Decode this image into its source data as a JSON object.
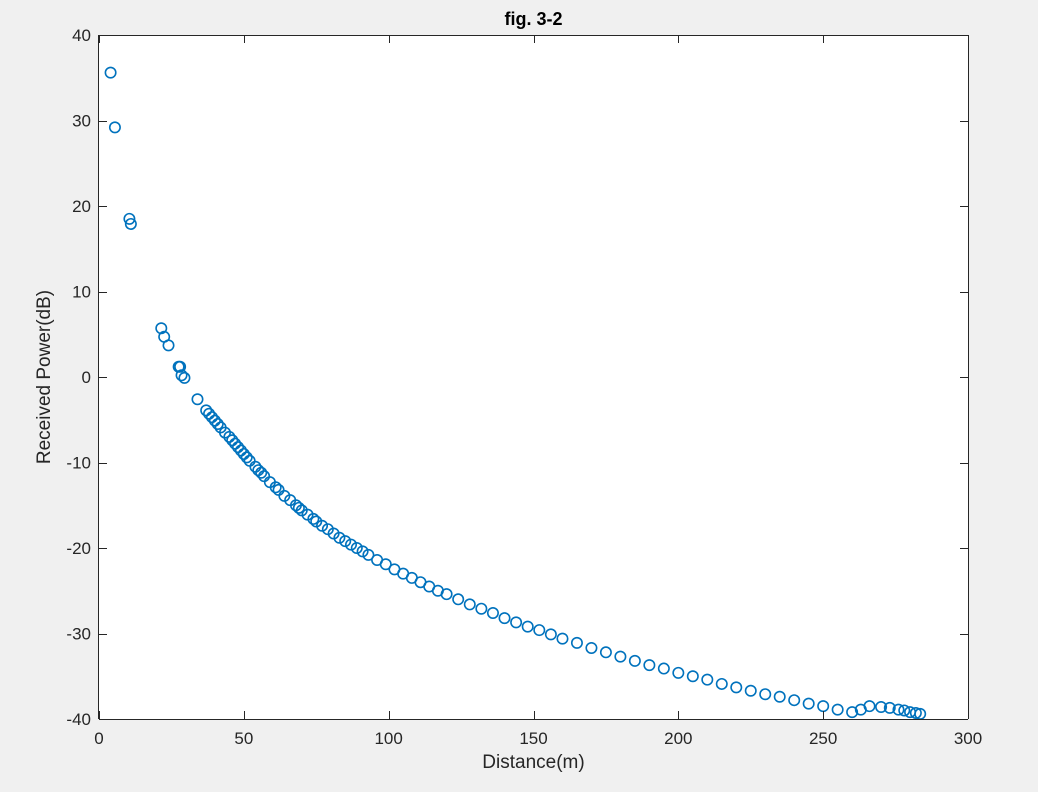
{
  "chart_data": {
    "type": "scatter",
    "title": "fig. 3-2",
    "xlabel": "Distance(m)",
    "ylabel": "Received Power(dB)",
    "xlim": [
      0,
      300
    ],
    "ylim": [
      -40,
      40
    ],
    "xticks": [
      "0",
      "50",
      "100",
      "150",
      "200",
      "250",
      "300"
    ],
    "yticks": [
      "40",
      "30",
      "20",
      "10",
      "0",
      "-10",
      "-20",
      "-30",
      "-40"
    ],
    "grid": false,
    "legend": "none",
    "marker": "circle-open",
    "colors": {
      "series": "#0072bd",
      "axes_background": "#ffffff",
      "figure_background": "#f0f0f0",
      "axis_line": "#262626"
    },
    "series": [
      {
        "x": [
          4,
          5.5,
          10.5,
          11,
          21.5,
          22.5,
          24,
          27.5,
          28,
          28.5,
          29.5,
          34,
          37,
          38,
          39,
          40,
          41,
          42,
          43.5,
          45,
          46,
          47,
          48,
          49,
          50,
          51,
          52,
          54,
          55,
          56,
          57,
          59,
          61,
          62,
          64,
          66,
          68,
          69,
          70,
          72,
          74,
          75,
          77,
          79,
          81,
          83,
          85,
          87,
          89,
          91,
          93,
          96,
          99,
          102,
          105,
          108,
          111,
          114,
          117,
          120,
          124,
          128,
          132,
          136,
          140,
          144,
          148,
          152,
          156,
          160,
          165,
          170,
          175,
          180,
          185,
          190,
          195,
          200,
          205,
          210,
          215,
          220,
          225,
          230,
          235,
          240,
          245,
          250,
          255,
          260,
          263,
          266,
          270,
          273,
          276,
          278,
          280,
          282,
          283.5
        ],
        "y": [
          35.6,
          29.2,
          18.5,
          17.9,
          5.7,
          4.7,
          3.7,
          1.2,
          1.2,
          0.2,
          -0.1,
          -2.6,
          -3.9,
          -4.3,
          -4.7,
          -5.1,
          -5.5,
          -5.9,
          -6.5,
          -7.0,
          -7.4,
          -7.8,
          -8.2,
          -8.6,
          -9.0,
          -9.4,
          -9.8,
          -10.5,
          -10.9,
          -11.2,
          -11.6,
          -12.3,
          -12.9,
          -13.2,
          -13.9,
          -14.4,
          -15.0,
          -15.3,
          -15.6,
          -16.1,
          -16.6,
          -16.9,
          -17.4,
          -17.8,
          -18.3,
          -18.8,
          -19.2,
          -19.6,
          -20.0,
          -20.4,
          -20.8,
          -21.4,
          -21.9,
          -22.5,
          -23.0,
          -23.5,
          -24.0,
          -24.5,
          -25.0,
          -25.4,
          -26.0,
          -26.6,
          -27.1,
          -27.6,
          -28.2,
          -28.7,
          -29.2,
          -29.6,
          -30.1,
          -30.6,
          -31.1,
          -31.7,
          -32.2,
          -32.7,
          -33.2,
          -33.7,
          -34.1,
          -34.6,
          -35.0,
          -35.4,
          -35.9,
          -36.3,
          -36.7,
          -37.1,
          -37.4,
          -37.8,
          -38.2,
          -38.5,
          -38.9,
          -39.2,
          -38.9,
          -38.5,
          -38.6,
          -38.7,
          -38.9,
          -39.0,
          -39.2,
          -39.3,
          -39.4
        ]
      }
    ]
  }
}
